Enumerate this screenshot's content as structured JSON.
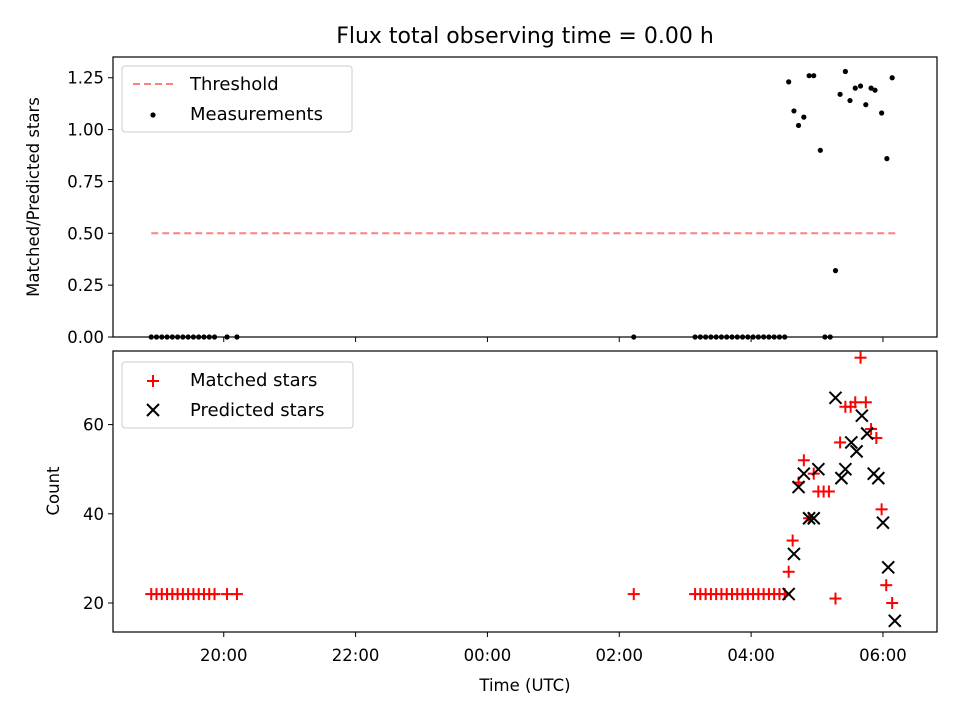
{
  "figure": {
    "title": "Flux total observing time = 0.00 h"
  },
  "colors": {
    "threshold": "#ff7f7f",
    "measurements": "#000000",
    "matched": "#ff0000",
    "predicted": "#000000"
  },
  "chart_data": [
    {
      "type": "scatter",
      "panel": "top",
      "title": "Flux total observing time = 0.00 h",
      "xlabel": "",
      "ylabel": "Matched/Predicted stars",
      "x_unit": "hours since 18:00 UTC",
      "xlim": [
        0.32,
        12.82
      ],
      "ylim": [
        0,
        1.35
      ],
      "yticks": [
        0,
        0.25,
        0.5,
        0.75,
        1.0,
        1.25
      ],
      "ytick_labels": [
        "0.00",
        "0.25",
        "0.50",
        "0.75",
        "1.00",
        "1.25"
      ],
      "xticks": [
        2,
        4,
        6,
        8,
        10,
        12
      ],
      "xtick_labels_shown": false,
      "grid": false,
      "legend": {
        "placement": "top-left",
        "entries": [
          "Threshold",
          "Measurements"
        ]
      },
      "series": [
        {
          "name": "Threshold",
          "kind": "dashed-line",
          "x": [
            0.9,
            12.2
          ],
          "y": [
            0.5,
            0.5
          ]
        },
        {
          "name": "Measurements",
          "kind": "points",
          "points": [
            [
              0.9,
              0
            ],
            [
              0.98,
              0
            ],
            [
              1.06,
              0
            ],
            [
              1.14,
              0
            ],
            [
              1.22,
              0
            ],
            [
              1.3,
              0
            ],
            [
              1.38,
              0
            ],
            [
              1.46,
              0
            ],
            [
              1.54,
              0
            ],
            [
              1.62,
              0
            ],
            [
              1.7,
              0
            ],
            [
              1.78,
              0
            ],
            [
              1.86,
              0
            ],
            [
              2.05,
              0
            ],
            [
              2.2,
              0
            ],
            [
              8.22,
              0
            ],
            [
              9.15,
              0
            ],
            [
              9.23,
              0
            ],
            [
              9.31,
              0
            ],
            [
              9.39,
              0
            ],
            [
              9.47,
              0
            ],
            [
              9.55,
              0
            ],
            [
              9.63,
              0
            ],
            [
              9.71,
              0
            ],
            [
              9.79,
              0
            ],
            [
              9.87,
              0
            ],
            [
              9.95,
              0
            ],
            [
              10.03,
              0
            ],
            [
              10.11,
              0
            ],
            [
              10.19,
              0
            ],
            [
              10.27,
              0
            ],
            [
              10.35,
              0
            ],
            [
              10.43,
              0
            ],
            [
              10.51,
              0
            ],
            [
              10.57,
              1.23
            ],
            [
              10.65,
              1.09
            ],
            [
              10.72,
              1.02
            ],
            [
              10.8,
              1.06
            ],
            [
              10.88,
              1.26
            ],
            [
              10.95,
              1.26
            ],
            [
              11.05,
              0.9
            ],
            [
              11.12,
              0
            ],
            [
              11.2,
              0
            ],
            [
              11.28,
              0.32
            ],
            [
              11.35,
              1.17
            ],
            [
              11.43,
              1.28
            ],
            [
              11.5,
              1.14
            ],
            [
              11.58,
              1.2
            ],
            [
              11.66,
              1.21
            ],
            [
              11.74,
              1.12
            ],
            [
              11.82,
              1.2
            ],
            [
              11.88,
              1.19
            ],
            [
              11.98,
              1.08
            ],
            [
              12.06,
              0.86
            ],
            [
              12.14,
              1.25
            ]
          ]
        }
      ]
    },
    {
      "type": "scatter",
      "panel": "bottom",
      "xlabel": "Time (UTC)",
      "ylabel": "Count",
      "x_unit": "hours since 18:00 UTC",
      "xlim": [
        0.32,
        12.82
      ],
      "ylim": [
        13.5,
        76.5
      ],
      "yticks": [
        20,
        40,
        60
      ],
      "ytick_labels": [
        "20",
        "40",
        "60"
      ],
      "xticks": [
        2,
        4,
        6,
        8,
        10,
        12
      ],
      "xtick_labels": [
        "20:00",
        "22:00",
        "00:00",
        "02:00",
        "04:00",
        "06:00"
      ],
      "grid": false,
      "legend": {
        "placement": "top-left",
        "entries": [
          "Matched stars",
          "Predicted stars"
        ]
      },
      "series": [
        {
          "name": "Matched stars",
          "marker": "plus",
          "points": [
            [
              0.9,
              22
            ],
            [
              0.98,
              22
            ],
            [
              1.06,
              22
            ],
            [
              1.14,
              22
            ],
            [
              1.22,
              22
            ],
            [
              1.3,
              22
            ],
            [
              1.38,
              22
            ],
            [
              1.46,
              22
            ],
            [
              1.54,
              22
            ],
            [
              1.62,
              22
            ],
            [
              1.7,
              22
            ],
            [
              1.78,
              22
            ],
            [
              1.86,
              22
            ],
            [
              2.05,
              22
            ],
            [
              2.2,
              22
            ],
            [
              8.22,
              22
            ],
            [
              9.15,
              22
            ],
            [
              9.23,
              22
            ],
            [
              9.31,
              22
            ],
            [
              9.39,
              22
            ],
            [
              9.47,
              22
            ],
            [
              9.55,
              22
            ],
            [
              9.63,
              22
            ],
            [
              9.71,
              22
            ],
            [
              9.79,
              22
            ],
            [
              9.87,
              22
            ],
            [
              9.95,
              22
            ],
            [
              10.03,
              22
            ],
            [
              10.11,
              22
            ],
            [
              10.19,
              22
            ],
            [
              10.27,
              22
            ],
            [
              10.35,
              22
            ],
            [
              10.43,
              22
            ],
            [
              10.51,
              22
            ],
            [
              10.57,
              27
            ],
            [
              10.63,
              34
            ],
            [
              10.72,
              47
            ],
            [
              10.8,
              52
            ],
            [
              10.88,
              39
            ],
            [
              10.95,
              49
            ],
            [
              11.02,
              45
            ],
            [
              11.1,
              45
            ],
            [
              11.18,
              45
            ],
            [
              11.28,
              21
            ],
            [
              11.35,
              56
            ],
            [
              11.43,
              64
            ],
            [
              11.51,
              64
            ],
            [
              11.58,
              65
            ],
            [
              11.66,
              75
            ],
            [
              11.74,
              65
            ],
            [
              11.82,
              59
            ],
            [
              11.9,
              57
            ],
            [
              11.98,
              41
            ],
            [
              12.05,
              24
            ],
            [
              12.14,
              20
            ]
          ]
        },
        {
          "name": "Predicted stars",
          "marker": "x",
          "points": [
            [
              10.57,
              22
            ],
            [
              10.65,
              31
            ],
            [
              10.72,
              46
            ],
            [
              10.8,
              49
            ],
            [
              10.88,
              39
            ],
            [
              10.95,
              39
            ],
            [
              11.02,
              50
            ],
            [
              11.28,
              66
            ],
            [
              11.37,
              48
            ],
            [
              11.43,
              50
            ],
            [
              11.52,
              56
            ],
            [
              11.6,
              54
            ],
            [
              11.68,
              62
            ],
            [
              11.76,
              58
            ],
            [
              11.86,
              49
            ],
            [
              11.93,
              48
            ],
            [
              12.0,
              38
            ],
            [
              12.08,
              28
            ],
            [
              12.18,
              16
            ]
          ]
        }
      ]
    }
  ]
}
